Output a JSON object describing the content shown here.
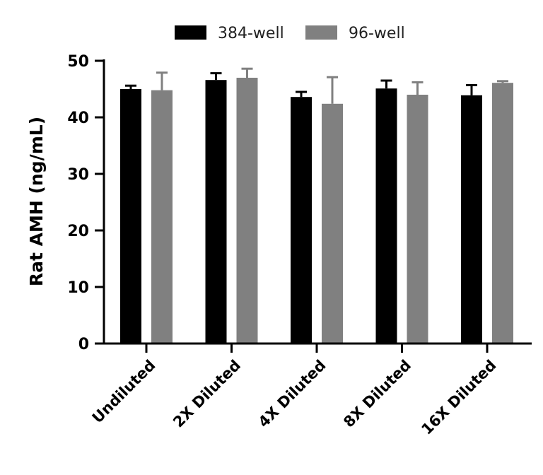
{
  "chart_data": {
    "type": "bar",
    "title": "",
    "xlabel": "",
    "ylabel": "Rat AMH (ng/mL)",
    "ylim": [
      0,
      50
    ],
    "yticks": [
      0,
      10,
      20,
      30,
      40,
      50
    ],
    "grid": false,
    "legend_position": "top",
    "categories": [
      "Undiluted",
      "2X Diluted",
      "4X Diluted",
      "8X Diluted",
      "16X Diluted"
    ],
    "series": [
      {
        "name": "384-well",
        "color": "#000000",
        "values": [
          45.0,
          46.6,
          43.6,
          45.1,
          43.9
        ],
        "errors": [
          0.6,
          1.2,
          0.9,
          1.4,
          1.8
        ]
      },
      {
        "name": "96-well",
        "color": "#808080",
        "values": [
          44.8,
          47.0,
          42.4,
          44.0,
          46.1
        ],
        "errors": [
          3.1,
          1.6,
          4.7,
          2.2,
          0.3
        ]
      }
    ]
  }
}
